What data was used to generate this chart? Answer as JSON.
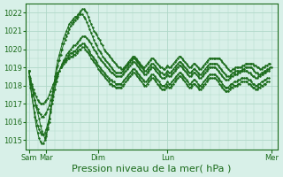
{
  "bg_color": "#d8f0e8",
  "grid_color": "#b0d8c8",
  "line_color": "#1a6b1a",
  "xlabel": "Pression niveau de la mer( hPa )",
  "xlabel_fontsize": 8,
  "yticks": [
    1015,
    1016,
    1017,
    1018,
    1019,
    1020,
    1021,
    1022
  ],
  "ylim": [
    1014.5,
    1022.5
  ],
  "xtick_labels": [
    "Sam",
    "Mar",
    "Dim",
    "Lun",
    "Mer"
  ],
  "xtick_positions": [
    0,
    12,
    48,
    96,
    168
  ],
  "xlim": [
    -2,
    172
  ],
  "series": [
    [
      1018.8,
      1018.2,
      1018.0,
      1017.6,
      1017.2,
      1016.8,
      1016.5,
      1016.2,
      1015.8,
      1015.5,
      1015.3,
      1015.1,
      1015.2,
      1015.6,
      1016.0,
      1016.5,
      1017.2,
      1017.8,
      1018.5,
      1019.0,
      1019.4,
      1019.7,
      1020.0,
      1020.3,
      1020.6,
      1020.8,
      1021.0,
      1021.2,
      1021.4,
      1021.5,
      1021.6,
      1021.7,
      1021.8,
      1021.8,
      1021.9,
      1022.0,
      1022.1,
      1022.2,
      1022.2,
      1022.1,
      1022.0,
      1021.8,
      1021.6,
      1021.4,
      1021.2,
      1021.0,
      1020.9,
      1020.8,
      1020.6,
      1020.5,
      1020.3,
      1020.2,
      1020.0,
      1019.9,
      1019.8,
      1019.7,
      1019.6,
      1019.5,
      1019.4,
      1019.3,
      1019.2,
      1019.1,
      1019.0,
      1019.0,
      1018.9,
      1018.9,
      1019.0,
      1019.1,
      1019.2,
      1019.3,
      1019.4,
      1019.5,
      1019.6,
      1019.6,
      1019.5,
      1019.4,
      1019.3,
      1019.2,
      1019.1,
      1019.0,
      1019.0,
      1019.1,
      1019.2,
      1019.3,
      1019.4,
      1019.5,
      1019.5,
      1019.4,
      1019.3,
      1019.2,
      1019.1,
      1019.0,
      1019.0,
      1018.9,
      1018.9,
      1019.0,
      1019.1,
      1019.0,
      1019.0,
      1019.1,
      1019.2,
      1019.3,
      1019.4,
      1019.5,
      1019.6,
      1019.6,
      1019.5,
      1019.4,
      1019.3,
      1019.2,
      1019.1,
      1019.0,
      1019.0,
      1019.1,
      1019.2,
      1019.2,
      1019.1,
      1019.0,
      1018.9,
      1018.9,
      1019.0,
      1019.1,
      1019.2,
      1019.3,
      1019.4,
      1019.5,
      1019.5,
      1019.5,
      1019.5,
      1019.5,
      1019.5,
      1019.5,
      1019.5,
      1019.4,
      1019.3,
      1019.2,
      1019.1,
      1019.0,
      1018.9,
      1018.8,
      1018.8,
      1018.9,
      1018.9,
      1019.0,
      1019.0,
      1019.0,
      1019.0,
      1019.0,
      1019.1,
      1019.1,
      1019.2,
      1019.2,
      1019.2,
      1019.2,
      1019.2,
      1019.2,
      1019.1,
      1019.1,
      1019.0,
      1019.0,
      1018.9,
      1018.9,
      1019.0,
      1019.0,
      1019.1,
      1019.1,
      1019.2,
      1019.2
    ],
    [
      1018.8,
      1018.1,
      1017.5,
      1016.9,
      1016.3,
      1015.8,
      1015.4,
      1015.1,
      1014.9,
      1014.8,
      1014.8,
      1015.0,
      1015.3,
      1015.7,
      1016.2,
      1016.7,
      1017.2,
      1017.7,
      1018.2,
      1018.7,
      1019.1,
      1019.4,
      1019.7,
      1020.0,
      1020.3,
      1020.5,
      1020.7,
      1020.9,
      1021.1,
      1021.3,
      1021.4,
      1021.5,
      1021.6,
      1021.7,
      1021.8,
      1021.9,
      1021.9,
      1021.9,
      1021.8,
      1021.7,
      1021.5,
      1021.3,
      1021.1,
      1020.9,
      1020.7,
      1020.5,
      1020.3,
      1020.2,
      1020.0,
      1019.9,
      1019.8,
      1019.6,
      1019.5,
      1019.4,
      1019.3,
      1019.2,
      1019.1,
      1019.0,
      1018.9,
      1018.8,
      1018.7,
      1018.7,
      1018.7,
      1018.7,
      1018.7,
      1018.8,
      1018.9,
      1019.0,
      1019.1,
      1019.2,
      1019.3,
      1019.4,
      1019.5,
      1019.5,
      1019.4,
      1019.3,
      1019.2,
      1019.1,
      1019.0,
      1018.9,
      1018.8,
      1018.8,
      1018.9,
      1019.0,
      1019.1,
      1019.2,
      1019.2,
      1019.1,
      1019.0,
      1018.9,
      1018.8,
      1018.7,
      1018.7,
      1018.6,
      1018.6,
      1018.7,
      1018.8,
      1018.7,
      1018.7,
      1018.8,
      1018.9,
      1019.0,
      1019.1,
      1019.2,
      1019.3,
      1019.3,
      1019.2,
      1019.1,
      1019.0,
      1018.9,
      1018.8,
      1018.7,
      1018.7,
      1018.8,
      1018.9,
      1018.9,
      1018.8,
      1018.7,
      1018.6,
      1018.6,
      1018.7,
      1018.8,
      1018.9,
      1019.0,
      1019.1,
      1019.2,
      1019.2,
      1019.2,
      1019.2,
      1019.2,
      1019.2,
      1019.1,
      1019.0,
      1018.9,
      1018.8,
      1018.7,
      1018.6,
      1018.5,
      1018.5,
      1018.5,
      1018.6,
      1018.7,
      1018.7,
      1018.8,
      1018.8,
      1018.8,
      1018.8,
      1018.8,
      1018.9,
      1018.9,
      1019.0,
      1019.0,
      1019.0,
      1019.0,
      1019.0,
      1018.9,
      1018.8,
      1018.7,
      1018.7,
      1018.6,
      1018.6,
      1018.7,
      1018.7,
      1018.8,
      1018.8,
      1018.9,
      1018.9,
      1019.0,
      1019.0
    ],
    [
      1018.5,
      1017.9,
      1017.4,
      1016.9,
      1016.5,
      1016.1,
      1015.8,
      1015.6,
      1015.4,
      1015.3,
      1015.3,
      1015.4,
      1015.6,
      1015.9,
      1016.2,
      1016.6,
      1017.0,
      1017.4,
      1017.8,
      1018.2,
      1018.5,
      1018.8,
      1019.0,
      1019.2,
      1019.4,
      1019.5,
      1019.7,
      1019.8,
      1019.9,
      1020.0,
      1020.1,
      1020.2,
      1020.2,
      1020.3,
      1020.4,
      1020.5,
      1020.6,
      1020.7,
      1020.7,
      1020.7,
      1020.6,
      1020.5,
      1020.4,
      1020.3,
      1020.1,
      1020.0,
      1019.9,
      1019.8,
      1019.6,
      1019.5,
      1019.4,
      1019.3,
      1019.2,
      1019.1,
      1019.0,
      1018.9,
      1018.8,
      1018.7,
      1018.7,
      1018.6,
      1018.5,
      1018.5,
      1018.5,
      1018.5,
      1018.5,
      1018.6,
      1018.7,
      1018.8,
      1018.9,
      1019.0,
      1019.1,
      1019.2,
      1019.3,
      1019.3,
      1019.2,
      1019.1,
      1019.0,
      1018.9,
      1018.8,
      1018.7,
      1018.6,
      1018.6,
      1018.7,
      1018.8,
      1018.9,
      1019.0,
      1019.0,
      1018.9,
      1018.8,
      1018.7,
      1018.6,
      1018.5,
      1018.4,
      1018.4,
      1018.4,
      1018.5,
      1018.6,
      1018.5,
      1018.5,
      1018.6,
      1018.7,
      1018.8,
      1018.9,
      1019.0,
      1019.1,
      1019.1,
      1019.0,
      1018.9,
      1018.8,
      1018.7,
      1018.6,
      1018.5,
      1018.5,
      1018.6,
      1018.7,
      1018.7,
      1018.6,
      1018.5,
      1018.4,
      1018.4,
      1018.5,
      1018.6,
      1018.7,
      1018.8,
      1018.9,
      1019.0,
      1019.0,
      1019.0,
      1019.0,
      1019.0,
      1018.9,
      1018.8,
      1018.7,
      1018.6,
      1018.5,
      1018.4,
      1018.3,
      1018.3,
      1018.3,
      1018.4,
      1018.5,
      1018.5,
      1018.6,
      1018.6,
      1018.6,
      1018.7,
      1018.7,
      1018.8,
      1018.8,
      1018.8,
      1018.8,
      1018.8,
      1018.7,
      1018.7,
      1018.6,
      1018.5,
      1018.5,
      1018.4,
      1018.4,
      1018.5,
      1018.5,
      1018.6,
      1018.6,
      1018.7,
      1018.7,
      1018.8,
      1018.8
    ],
    [
      1018.8,
      1018.3,
      1017.9,
      1017.5,
      1017.2,
      1016.9,
      1016.7,
      1016.5,
      1016.4,
      1016.3,
      1016.3,
      1016.4,
      1016.5,
      1016.7,
      1016.9,
      1017.2,
      1017.5,
      1017.8,
      1018.1,
      1018.4,
      1018.6,
      1018.8,
      1019.0,
      1019.1,
      1019.3,
      1019.4,
      1019.5,
      1019.6,
      1019.7,
      1019.8,
      1019.8,
      1019.9,
      1019.9,
      1020.0,
      1020.1,
      1020.2,
      1020.2,
      1020.3,
      1020.3,
      1020.2,
      1020.1,
      1020.0,
      1019.9,
      1019.7,
      1019.6,
      1019.5,
      1019.4,
      1019.3,
      1019.1,
      1019.0,
      1018.9,
      1018.8,
      1018.7,
      1018.6,
      1018.5,
      1018.4,
      1018.3,
      1018.3,
      1018.2,
      1018.2,
      1018.1,
      1018.1,
      1018.1,
      1018.1,
      1018.1,
      1018.2,
      1018.3,
      1018.4,
      1018.5,
      1018.6,
      1018.7,
      1018.8,
      1018.9,
      1018.9,
      1018.8,
      1018.7,
      1018.6,
      1018.5,
      1018.4,
      1018.3,
      1018.2,
      1018.2,
      1018.3,
      1018.4,
      1018.5,
      1018.6,
      1018.6,
      1018.5,
      1018.4,
      1018.3,
      1018.2,
      1018.1,
      1018.0,
      1018.0,
      1018.0,
      1018.1,
      1018.2,
      1018.1,
      1018.1,
      1018.2,
      1018.3,
      1018.4,
      1018.5,
      1018.6,
      1018.7,
      1018.7,
      1018.6,
      1018.5,
      1018.4,
      1018.3,
      1018.2,
      1018.1,
      1018.1,
      1018.2,
      1018.3,
      1018.3,
      1018.2,
      1018.1,
      1018.0,
      1018.0,
      1018.1,
      1018.2,
      1018.3,
      1018.4,
      1018.5,
      1018.6,
      1018.6,
      1018.6,
      1018.6,
      1018.6,
      1018.5,
      1018.4,
      1018.3,
      1018.2,
      1018.1,
      1018.0,
      1017.9,
      1017.9,
      1017.9,
      1018.0,
      1018.1,
      1018.1,
      1018.2,
      1018.2,
      1018.2,
      1018.3,
      1018.3,
      1018.4,
      1018.4,
      1018.4,
      1018.4,
      1018.4,
      1018.3,
      1018.3,
      1018.2,
      1018.1,
      1018.1,
      1018.0,
      1018.0,
      1018.1,
      1018.1,
      1018.2,
      1018.2,
      1018.3,
      1018.3,
      1018.4,
      1018.4
    ],
    [
      1018.8,
      1018.4,
      1018.1,
      1017.8,
      1017.6,
      1017.4,
      1017.2,
      1017.1,
      1017.0,
      1017.0,
      1017.0,
      1017.1,
      1017.2,
      1017.3,
      1017.5,
      1017.7,
      1017.9,
      1018.1,
      1018.3,
      1018.5,
      1018.7,
      1018.8,
      1019.0,
      1019.1,
      1019.2,
      1019.3,
      1019.4,
      1019.5,
      1019.5,
      1019.6,
      1019.6,
      1019.7,
      1019.7,
      1019.8,
      1019.9,
      1020.0,
      1020.0,
      1020.1,
      1020.1,
      1020.0,
      1019.9,
      1019.8,
      1019.7,
      1019.5,
      1019.4,
      1019.3,
      1019.2,
      1019.1,
      1018.9,
      1018.8,
      1018.7,
      1018.6,
      1018.5,
      1018.4,
      1018.3,
      1018.2,
      1018.1,
      1018.1,
      1018.0,
      1018.0,
      1017.9,
      1017.9,
      1017.9,
      1017.9,
      1017.9,
      1018.0,
      1018.1,
      1018.2,
      1018.3,
      1018.4,
      1018.5,
      1018.6,
      1018.7,
      1018.7,
      1018.6,
      1018.5,
      1018.4,
      1018.3,
      1018.2,
      1018.1,
      1018.0,
      1018.0,
      1018.1,
      1018.2,
      1018.3,
      1018.4,
      1018.4,
      1018.3,
      1018.2,
      1018.1,
      1018.0,
      1017.9,
      1017.8,
      1017.8,
      1017.8,
      1017.9,
      1018.0,
      1017.9,
      1017.9,
      1018.0,
      1018.1,
      1018.2,
      1018.3,
      1018.4,
      1018.5,
      1018.5,
      1018.4,
      1018.3,
      1018.2,
      1018.1,
      1018.0,
      1017.9,
      1017.9,
      1018.0,
      1018.1,
      1018.1,
      1018.0,
      1017.9,
      1017.8,
      1017.8,
      1017.9,
      1018.0,
      1018.1,
      1018.2,
      1018.3,
      1018.4,
      1018.4,
      1018.4,
      1018.4,
      1018.4,
      1018.3,
      1018.2,
      1018.1,
      1018.0,
      1017.9,
      1017.8,
      1017.7,
      1017.7,
      1017.7,
      1017.8,
      1017.9,
      1017.9,
      1018.0,
      1018.0,
      1018.0,
      1018.1,
      1018.1,
      1018.2,
      1018.2,
      1018.2,
      1018.2,
      1018.2,
      1018.1,
      1018.1,
      1018.0,
      1017.9,
      1017.9,
      1017.8,
      1017.8,
      1017.9,
      1017.9,
      1018.0,
      1018.0,
      1018.1,
      1018.1,
      1018.2,
      1018.2
    ]
  ]
}
